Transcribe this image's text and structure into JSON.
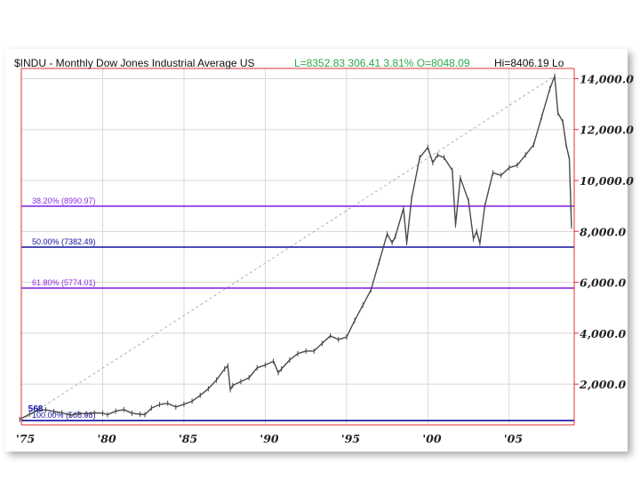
{
  "header": {
    "symbol_text": "$INDU - Monthly  Dow Jones Industrial Average  US",
    "quote_text": "L=8352.83  306.41  3.81%  O=8048.09",
    "hi_text": "Hi=8406.19  Lo"
  },
  "colors": {
    "price": "#4a4a4a",
    "fib_purple": "#8a2be2",
    "fib_blue": "#1010a0",
    "axis_red": "#e03030",
    "grid": "#d8d8d8",
    "quote_green": "#2aa84a",
    "trend": "#b0b0b0"
  },
  "chart_data": {
    "type": "line",
    "title": "$INDU - Monthly  Dow Jones Industrial Average  US",
    "xlabel": "",
    "ylabel": "",
    "x_tick_labels": [
      "'75",
      "'80",
      "'85",
      "'90",
      "'95",
      "'00",
      "'05"
    ],
    "x_tick_years": [
      1975,
      1980,
      1985,
      1990,
      1995,
      2000,
      2005
    ],
    "y_tick_labels": [
      "2,000.0",
      "4,000.0",
      "6,000.0",
      "8,000.0",
      "10,000.0",
      "12,000.0",
      "14,000.0"
    ],
    "y_tick_values": [
      2000,
      4000,
      6000,
      8000,
      10000,
      12000,
      14000
    ],
    "xlim": [
      1975,
      2009
    ],
    "ylim": [
      400,
      14400
    ],
    "grid": true,
    "series": [
      {
        "x": [
          1974.9,
          1975.5,
          1976.0,
          1976.5,
          1977.0,
          1977.5,
          1978.0,
          1978.5,
          1979.0,
          1979.5,
          1980.0,
          1980.3,
          1980.8,
          1981.3,
          1981.8,
          1982.3,
          1982.6,
          1983.0,
          1983.5,
          1984.0,
          1984.5,
          1985.0,
          1985.5,
          1986.0,
          1986.5,
          1987.0,
          1987.5,
          1987.7,
          1987.85,
          1988.0,
          1988.5,
          1989.0,
          1989.5,
          1990.0,
          1990.5,
          1990.8,
          1991.0,
          1991.5,
          1992.0,
          1992.5,
          1993.0,
          1993.5,
          1994.0,
          1994.5,
          1995.0,
          1995.5,
          1996.0,
          1996.5,
          1997.0,
          1997.5,
          1997.8,
          1998.0,
          1998.5,
          1998.7,
          1999.0,
          1999.5,
          2000.0,
          2000.3,
          2000.6,
          2001.0,
          2001.5,
          2001.7,
          2002.0,
          2002.5,
          2002.8,
          2003.0,
          2003.2,
          2003.5,
          2004.0,
          2004.5,
          2005.0,
          2005.5,
          2006.0,
          2006.5,
          2007.0,
          2007.5,
          2007.8,
          2008.0,
          2008.3,
          2008.5,
          2008.7,
          2008.83
        ],
        "values": [
          616,
          820,
          970,
          990,
          930,
          880,
          780,
          850,
          840,
          870,
          860,
          800,
          940,
          1000,
          860,
          820,
          800,
          1060,
          1200,
          1250,
          1100,
          1210,
          1330,
          1560,
          1820,
          2160,
          2600,
          2720,
          1780,
          1950,
          2100,
          2250,
          2640,
          2750,
          2900,
          2450,
          2600,
          2950,
          3200,
          3300,
          3300,
          3600,
          3900,
          3750,
          3850,
          4500,
          5100,
          5700,
          6800,
          7900,
          7550,
          7800,
          8900,
          7550,
          9300,
          10900,
          11300,
          10700,
          11000,
          10900,
          10400,
          8250,
          10100,
          9200,
          7700,
          8000,
          7530,
          9000,
          10300,
          10200,
          10500,
          10600,
          11000,
          11400,
          12500,
          13600,
          14100,
          12650,
          12300,
          11400,
          10850,
          8200
        ]
      }
    ],
    "fib_levels": [
      {
        "label": "38.20% (8990.97)",
        "value": 8990.97,
        "color": "#8a2be2"
      },
      {
        "label": "50.00% (7382.49)",
        "value": 7382.49,
        "color": "#1010a0"
      },
      {
        "label": "61.80% (5774.01)",
        "value": 5774.01,
        "color": "#8a2be2"
      },
      {
        "label": "100.00% (568.08)",
        "value": 568.08,
        "color": "#1010a0"
      }
    ],
    "annotations": [
      {
        "text": "568",
        "x": 1975.2,
        "y": 568
      }
    ],
    "trendline": {
      "from": [
        1975.0,
        568
      ],
      "to": [
        2007.8,
        14100
      ]
    }
  }
}
